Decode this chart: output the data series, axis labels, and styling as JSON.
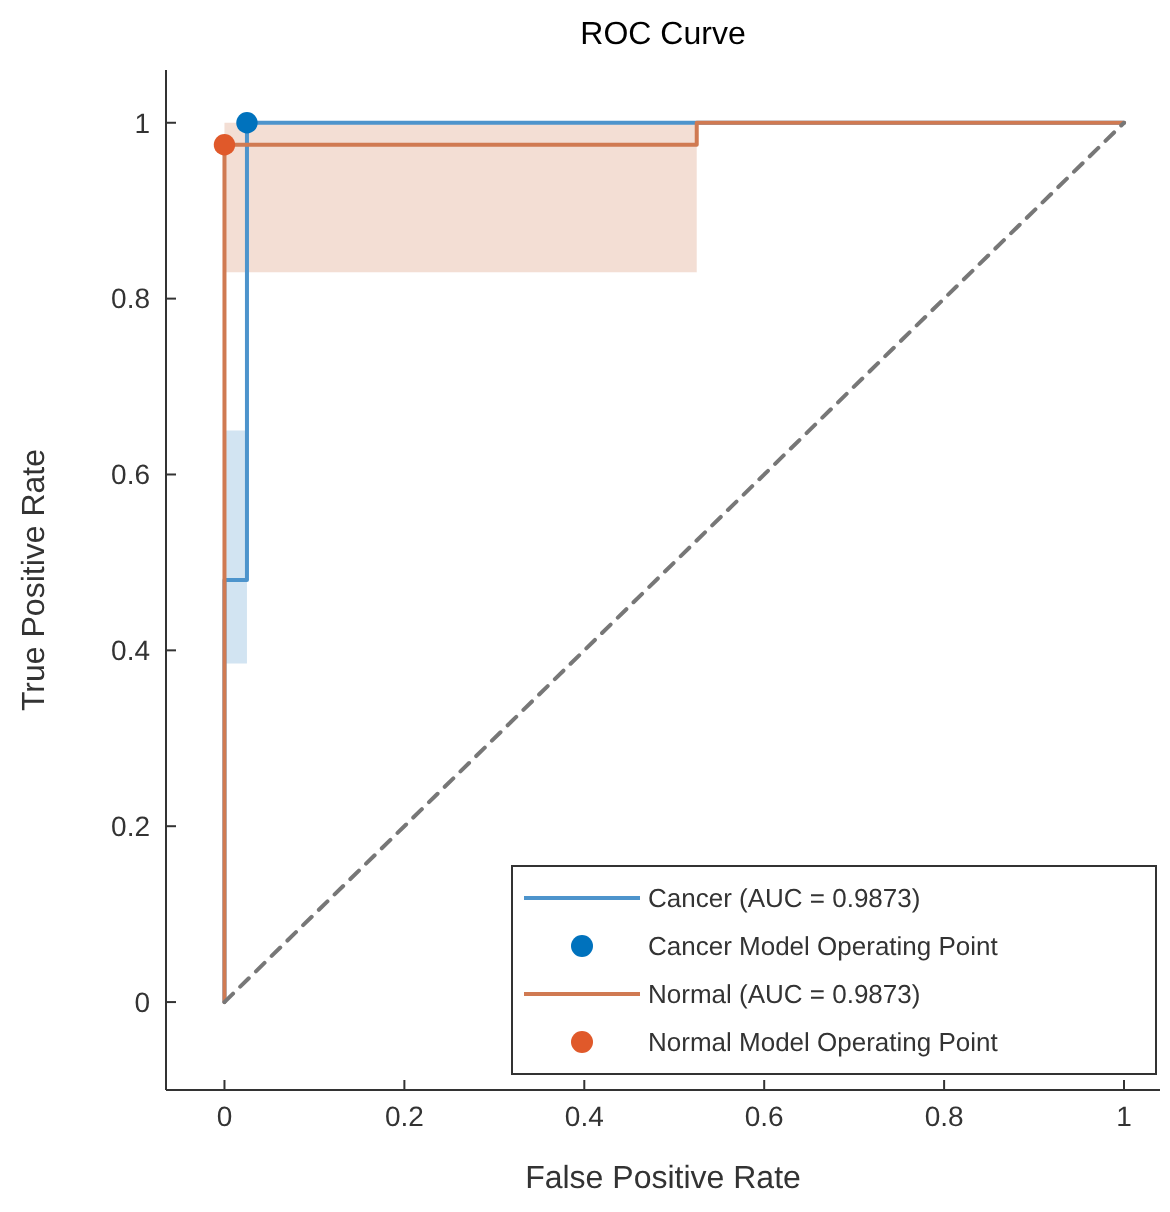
{
  "chart_data": {
    "type": "line",
    "title": "ROC Curve",
    "xlabel": "False Positive Rate",
    "ylabel": "True Positive Rate",
    "xlim": [
      -0.065,
      1.04
    ],
    "ylim": [
      -0.1,
      1.06
    ],
    "xticks": [
      0,
      0.2,
      0.4,
      0.6,
      0.8,
      1
    ],
    "yticks": [
      0,
      0.2,
      0.4,
      0.6,
      0.8,
      1
    ],
    "grid": false,
    "legend": "bottom right",
    "series": [
      {
        "name": "Cancer (AUC = 0.9873)",
        "color": "#4d94cc",
        "x": [
          0,
          0,
          0.025,
          0.025,
          1
        ],
        "values": [
          0,
          0.48,
          0.48,
          1,
          1
        ],
        "lower": [
          null,
          0.385,
          0.385,
          null,
          null
        ],
        "upper": [
          null,
          0.65,
          0.65,
          null,
          null
        ],
        "marker": "none",
        "line_style": "solid"
      },
      {
        "name": "Cancer Model Operating Point",
        "type": "scatter",
        "color": "#0072bd",
        "x": [
          0.025
        ],
        "values": [
          1
        ],
        "marker": "circle"
      },
      {
        "name": "Normal (AUC = 0.9873)",
        "color": "#d07a52",
        "x": [
          0,
          0,
          0.525,
          0.525,
          1
        ],
        "values": [
          0,
          0.975,
          0.975,
          1,
          1
        ],
        "lower": [
          null,
          0.83,
          0.83,
          null,
          null
        ],
        "upper": [
          null,
          1,
          1,
          null,
          null
        ],
        "marker": "none",
        "line_style": "solid"
      },
      {
        "name": "Normal Model Operating Point",
        "type": "scatter",
        "color": "#e0592a",
        "x": [
          0
        ],
        "values": [
          0.975
        ],
        "marker": "circle"
      },
      {
        "color": "#777777",
        "x": [
          0,
          1
        ],
        "values": [
          0,
          1
        ],
        "marker": "none",
        "line_style": "dashed"
      }
    ]
  }
}
